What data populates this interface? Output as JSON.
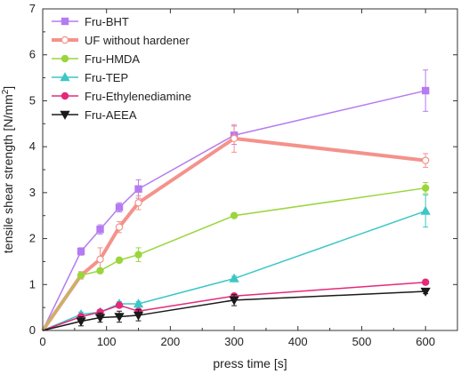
{
  "chart_data": {
    "type": "line",
    "xlabel": "press time [s]",
    "ylabel": "tensile shear strength [N/mm",
    "ylabel_sup": "2",
    "ylabel_end": "]",
    "xlim": [
      0,
      650
    ],
    "ylim": [
      0,
      7
    ],
    "xticks": [
      "0",
      "100",
      "200",
      "300",
      "400",
      "500",
      "600"
    ],
    "yticks": [
      "0",
      "1",
      "2",
      "3",
      "4",
      "5",
      "6",
      "7"
    ],
    "legend_position": "top-left",
    "grid": false,
    "series": [
      {
        "name": "Fru-BHT",
        "color": "#b57bf0",
        "marker": "square",
        "fill": "filled",
        "width": 1.5,
        "x": [
          0,
          60,
          90,
          120,
          150,
          300,
          600
        ],
        "y": [
          0,
          1.72,
          2.2,
          2.68,
          3.08,
          4.25,
          5.22
        ],
        "err": [
          0,
          0.08,
          0.1,
          0.1,
          0.2,
          0.2,
          0.45
        ]
      },
      {
        "name": "UF without hardener",
        "color": "#f4928b",
        "marker": "circle",
        "fill": "open",
        "width": 4,
        "x": [
          0,
          60,
          90,
          120,
          150,
          300,
          600
        ],
        "y": [
          0,
          1.2,
          1.55,
          2.25,
          2.78,
          4.18,
          3.7
        ],
        "err": [
          0,
          0.08,
          0.25,
          0.12,
          0.15,
          0.3,
          0.15
        ]
      },
      {
        "name": "Fru-HMDA",
        "color": "#9ad53c",
        "marker": "circle",
        "fill": "filled",
        "width": 1.5,
        "x": [
          0,
          60,
          90,
          120,
          150,
          300,
          600
        ],
        "y": [
          0,
          1.2,
          1.3,
          1.53,
          1.65,
          2.5,
          3.1
        ],
        "err": [
          0,
          0.05,
          0.05,
          0.05,
          0.15,
          0.05,
          0.12
        ]
      },
      {
        "name": "Fru-TEP",
        "color": "#3cc6c8",
        "marker": "triangle-up",
        "fill": "filled",
        "width": 1.5,
        "x": [
          0,
          60,
          90,
          120,
          150,
          300,
          600
        ],
        "y": [
          0,
          0.35,
          0.4,
          0.58,
          0.58,
          1.13,
          2.6
        ],
        "err": [
          0,
          0.05,
          0.05,
          0.05,
          0.05,
          0.05,
          0.35
        ]
      },
      {
        "name": "Fru-Ethylenediamine",
        "color": "#e6287a",
        "marker": "circle",
        "fill": "filled",
        "width": 1.5,
        "x": [
          0,
          60,
          90,
          120,
          150,
          300,
          600
        ],
        "y": [
          0,
          0.3,
          0.4,
          0.55,
          0.42,
          0.75,
          1.05
        ],
        "err": [
          0,
          0.05,
          0.05,
          0.05,
          0.05,
          0.05,
          0.05
        ]
      },
      {
        "name": "Fru-AEEA",
        "color": "#1a1a1a",
        "marker": "triangle-down",
        "fill": "filled",
        "width": 1.5,
        "x": [
          0,
          60,
          90,
          120,
          150,
          300,
          600
        ],
        "y": [
          0,
          0.2,
          0.28,
          0.3,
          0.33,
          0.66,
          0.85
        ],
        "err": [
          0,
          0.1,
          0.1,
          0.12,
          0.12,
          0.12,
          0.05
        ]
      }
    ]
  }
}
